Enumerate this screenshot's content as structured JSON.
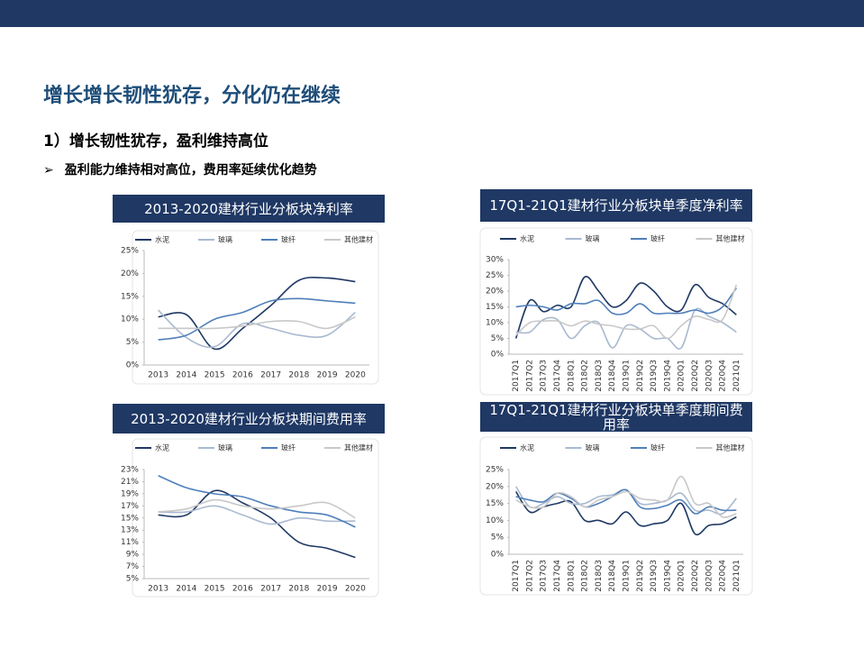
{
  "slide": {
    "title": "增长增长韧性犹存，分化仍在继续",
    "subtitle": "1）增长韧性犹存，盈利维持高位",
    "bullet": "盈利能力维持相对高位，费用率延续优化趋势"
  },
  "chart_data": [
    {
      "type": "line",
      "title": "2013-2020建材行业分板块净利率",
      "categories": [
        "2013",
        "2014",
        "2015",
        "2016",
        "2017",
        "2018",
        "2019",
        "2020"
      ],
      "series": [
        {
          "name": "水泥",
          "color": "#1f3864",
          "values": [
            10.5,
            11,
            3.5,
            8,
            13,
            18.5,
            19,
            18.2
          ]
        },
        {
          "name": "玻璃",
          "color": "#a9b9d0",
          "values": [
            12,
            6,
            4,
            9,
            8,
            6.5,
            6.5,
            11.5
          ]
        },
        {
          "name": "玻纤",
          "color": "#4f7fba",
          "values": [
            5.5,
            6.5,
            10,
            11.5,
            14,
            14.5,
            14,
            13.5
          ]
        },
        {
          "name": "其他建材",
          "color": "#c8c8c8",
          "values": [
            8,
            8,
            8,
            8.5,
            9.5,
            9.5,
            8,
            10.5
          ]
        }
      ],
      "ylim": [
        0,
        25
      ],
      "yticks": [
        {
          "value": 0,
          "label": "0%"
        },
        {
          "value": 5,
          "label": "5%"
        },
        {
          "value": 10,
          "label": "10%"
        },
        {
          "value": 15,
          "label": "15%"
        },
        {
          "value": 20,
          "label": "20%"
        },
        {
          "value": 25,
          "label": "25%"
        }
      ]
    },
    {
      "type": "line",
      "title": "17Q1-21Q1建材行业分板块单季度净利率",
      "categories": [
        "2017Q1",
        "2017Q2",
        "2017Q3",
        "2017Q4",
        "2018Q1",
        "2018Q2",
        "2018Q3",
        "2018Q4",
        "2019Q1",
        "2019Q2",
        "2019Q3",
        "2019Q4",
        "2020Q1",
        "2020Q2",
        "2020Q3",
        "2020Q4",
        "2021Q1"
      ],
      "series": [
        {
          "name": "水泥",
          "color": "#1f3864",
          "values": [
            5,
            17,
            13.5,
            15.5,
            15,
            24.5,
            20,
            15,
            17,
            22.5,
            20,
            15,
            14,
            22,
            18,
            16,
            12.5
          ]
        },
        {
          "name": "玻璃",
          "color": "#a9b9d0",
          "values": [
            7,
            7,
            11,
            11,
            5,
            9,
            10,
            2,
            9,
            8,
            5,
            5,
            2,
            14,
            12,
            10,
            7
          ]
        },
        {
          "name": "玻纤",
          "color": "#4f7fba",
          "values": [
            15,
            15.5,
            15,
            14,
            16,
            16,
            17,
            13,
            13,
            16,
            13,
            13,
            13,
            14,
            13,
            15,
            21
          ]
        },
        {
          "name": "其他建材",
          "color": "#c8c8c8",
          "values": [
            6,
            10,
            10.5,
            10.5,
            9,
            10.5,
            9.5,
            9,
            8,
            8,
            9,
            5,
            9,
            12,
            11,
            11,
            22
          ]
        }
      ],
      "ylim": [
        0,
        30
      ],
      "yticks": [
        {
          "value": 0,
          "label": "0%"
        },
        {
          "value": 5,
          "label": "5%"
        },
        {
          "value": 10,
          "label": "10%"
        },
        {
          "value": 15,
          "label": "15%"
        },
        {
          "value": 20,
          "label": "20%"
        },
        {
          "value": 25,
          "label": "25%"
        },
        {
          "value": 30,
          "label": "30%"
        }
      ]
    },
    {
      "type": "line",
      "title": "2013-2020建材行业分板块期间费用率",
      "categories": [
        "2013",
        "2014",
        "2015",
        "2016",
        "2017",
        "2018",
        "2019",
        "2020"
      ],
      "series": [
        {
          "name": "水泥",
          "color": "#1f3864",
          "values": [
            15.5,
            15.5,
            19.5,
            17.5,
            15,
            11,
            10,
            8.5
          ]
        },
        {
          "name": "玻璃",
          "color": "#a9b9d0",
          "values": [
            16,
            16,
            17,
            15.5,
            14,
            15,
            14.5,
            14.5
          ]
        },
        {
          "name": "玻纤",
          "color": "#4f7fba",
          "values": [
            22,
            20,
            19,
            18.5,
            17,
            16,
            15.5,
            13.5
          ]
        },
        {
          "name": "其他建材",
          "color": "#c8c8c8",
          "values": [
            16,
            16.5,
            18,
            17,
            16.5,
            17,
            17.5,
            15
          ]
        }
      ],
      "ylim": [
        5,
        23
      ],
      "yticks": [
        {
          "value": 5,
          "label": "5%"
        },
        {
          "value": 7,
          "label": "7%"
        },
        {
          "value": 9,
          "label": "9%"
        },
        {
          "value": 11,
          "label": "11%"
        },
        {
          "value": 13,
          "label": "13%"
        },
        {
          "value": 15,
          "label": "15%"
        },
        {
          "value": 17,
          "label": "17%"
        },
        {
          "value": 19,
          "label": "19%"
        },
        {
          "value": 21,
          "label": "21%"
        },
        {
          "value": 23,
          "label": "23%"
        }
      ]
    },
    {
      "type": "line",
      "title": "17Q1-21Q1建材行业分板块单季度期间费用率",
      "categories": [
        "2017Q1",
        "2017Q2",
        "2017Q3",
        "2017Q4",
        "2018Q1",
        "2018Q2",
        "2018Q3",
        "2018Q4",
        "2019Q1",
        "2019Q2",
        "2019Q3",
        "2019Q4",
        "2020Q1",
        "2020Q2",
        "2020Q3",
        "2020Q4",
        "2021Q1"
      ],
      "series": [
        {
          "name": "水泥",
          "color": "#1f3864",
          "values": [
            18.5,
            12.5,
            14,
            15,
            15.5,
            10,
            10,
            9,
            12.5,
            8.5,
            9,
            10,
            15,
            6,
            8.5,
            9,
            11
          ]
        },
        {
          "name": "玻璃",
          "color": "#a9b9d0",
          "values": [
            20,
            14,
            15,
            17,
            15,
            15,
            17,
            17.5,
            19,
            15,
            15,
            16,
            18,
            13,
            13,
            12,
            16.5
          ]
        },
        {
          "name": "玻纤",
          "color": "#4f7fba",
          "values": [
            17,
            16,
            15.5,
            18,
            16.5,
            14,
            15,
            17,
            19,
            14,
            13.5,
            14.5,
            16,
            12,
            14,
            13,
            13
          ]
        },
        {
          "name": "其他建材",
          "color": "#c8c8c8",
          "values": [
            16,
            14,
            14,
            18,
            17,
            14,
            16,
            17,
            18.5,
            16.5,
            16,
            16,
            23,
            15,
            15,
            11,
            12
          ]
        }
      ],
      "ylim": [
        0,
        25
      ],
      "yticks": [
        {
          "value": 0,
          "label": "0%"
        },
        {
          "value": 5,
          "label": "5%"
        },
        {
          "value": 10,
          "label": "10%"
        },
        {
          "value": 15,
          "label": "15%"
        },
        {
          "value": 20,
          "label": "20%"
        },
        {
          "value": 25,
          "label": "25%"
        }
      ]
    }
  ]
}
